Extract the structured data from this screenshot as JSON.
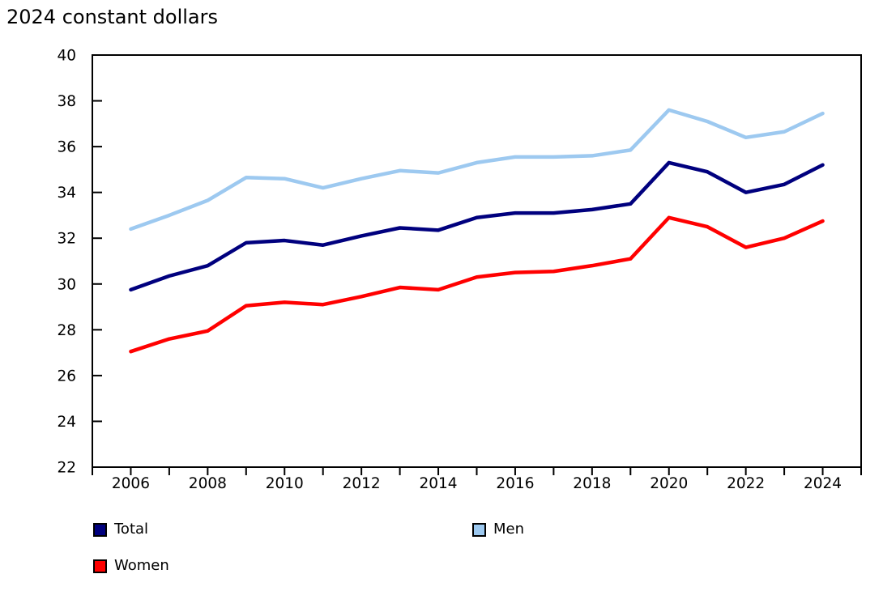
{
  "chart_data": {
    "type": "line",
    "title": "2024 constant dollars",
    "xlabel": "",
    "ylabel": "",
    "x": [
      2006,
      2007,
      2008,
      2009,
      2010,
      2011,
      2012,
      2013,
      2014,
      2015,
      2016,
      2017,
      2018,
      2019,
      2020,
      2021,
      2022,
      2023,
      2024
    ],
    "series": [
      {
        "name": "Total",
        "color": "#00007E",
        "values": [
          29.75,
          30.35,
          30.8,
          31.8,
          31.9,
          31.7,
          32.1,
          32.45,
          32.35,
          32.9,
          33.1,
          33.1,
          33.25,
          33.5,
          35.3,
          34.9,
          34.0,
          34.35,
          35.2
        ]
      },
      {
        "name": "Men",
        "color": "#9DC9F0",
        "values": [
          32.4,
          33.0,
          33.65,
          34.65,
          34.6,
          34.2,
          34.6,
          34.95,
          34.85,
          35.3,
          35.55,
          35.55,
          35.6,
          35.85,
          37.6,
          37.1,
          36.4,
          36.65,
          37.45
        ]
      },
      {
        "name": "Women",
        "color": "#FF0000",
        "values": [
          27.05,
          27.6,
          27.95,
          29.05,
          29.2,
          29.1,
          29.45,
          29.85,
          29.75,
          30.3,
          30.5,
          30.55,
          30.8,
          31.1,
          32.9,
          32.5,
          31.6,
          32.0,
          32.75
        ]
      }
    ],
    "ylim": [
      22,
      40
    ],
    "ytick_step": 2,
    "xlim": [
      2005,
      2025
    ],
    "xtick_step": 1,
    "xlabel_start": 2006,
    "xlabel_step": 2,
    "grid": false,
    "legend_position": "bottom",
    "axis_color": "#000000",
    "text_color": "#000000"
  }
}
